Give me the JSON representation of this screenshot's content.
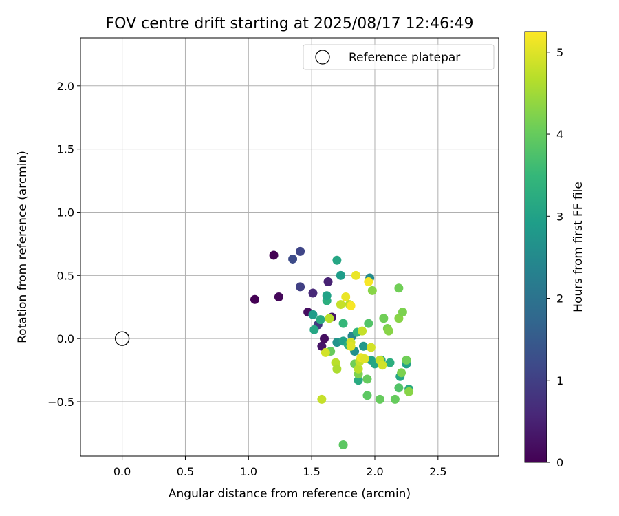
{
  "chart_data": {
    "type": "scatter",
    "title": "FOV centre drift starting at 2025/08/17 12:46:49",
    "xlabel": "Angular distance from reference (arcmin)",
    "ylabel": "Rotation from reference (arcmin)",
    "xlim": [
      -0.33,
      2.98
    ],
    "ylim": [
      -0.93,
      2.38
    ],
    "x_ticks": [
      0.0,
      0.5,
      1.0,
      1.5,
      2.0,
      2.5
    ],
    "y_ticks": [
      -0.5,
      0.0,
      0.5,
      1.0,
      1.5,
      2.0
    ],
    "x_tick_labels": [
      "0.0",
      "0.5",
      "1.0",
      "1.5",
      "2.0",
      "2.5"
    ],
    "y_tick_labels": [
      "−0.5",
      "0.0",
      "0.5",
      "1.0",
      "1.5",
      "2.0"
    ],
    "grid": true,
    "legend": {
      "placement": "top-right",
      "entries": [
        {
          "label": "Reference platepar",
          "marker": "open-circle"
        }
      ]
    },
    "reference_point": {
      "x": 0.0,
      "y": 0.0,
      "marker": "open-circle"
    },
    "colorbar": {
      "label": "Hours from first FF file",
      "range": [
        0,
        5.25
      ],
      "ticks": [
        0,
        1,
        2,
        3,
        4,
        5
      ],
      "colormap": "viridis",
      "colors": [
        "#440154",
        "#482878",
        "#3e4989",
        "#31688e",
        "#26828e",
        "#1f9e89",
        "#35b779",
        "#6ece58",
        "#b5de2b",
        "#fde725"
      ]
    },
    "series": [
      {
        "c_label": "Hours from first FF file",
        "points": [
          {
            "x": 1.05,
            "y": 0.31,
            "c": 0.0
          },
          {
            "x": 1.2,
            "y": 0.66,
            "c": 0.0
          },
          {
            "x": 1.24,
            "y": 0.33,
            "c": 0.1
          },
          {
            "x": 1.35,
            "y": 0.63,
            "c": 1.2
          },
          {
            "x": 1.41,
            "y": 0.69,
            "c": 1.1
          },
          {
            "x": 1.41,
            "y": 0.41,
            "c": 1.0
          },
          {
            "x": 1.47,
            "y": 0.21,
            "c": 0.2
          },
          {
            "x": 1.51,
            "y": 0.36,
            "c": 0.6
          },
          {
            "x": 1.55,
            "y": 0.11,
            "c": 0.9
          },
          {
            "x": 1.58,
            "y": -0.06,
            "c": 0.3
          },
          {
            "x": 1.6,
            "y": 0.0,
            "c": 0.2
          },
          {
            "x": 1.63,
            "y": 0.45,
            "c": 0.5
          },
          {
            "x": 1.66,
            "y": 0.17,
            "c": 0.3
          },
          {
            "x": 1.51,
            "y": 0.19,
            "c": 2.9
          },
          {
            "x": 1.52,
            "y": 0.07,
            "c": 3.1
          },
          {
            "x": 1.57,
            "y": 0.15,
            "c": 3.2
          },
          {
            "x": 1.62,
            "y": 0.3,
            "c": 3.3
          },
          {
            "x": 1.62,
            "y": 0.34,
            "c": 3.0
          },
          {
            "x": 1.7,
            "y": 0.62,
            "c": 3.1
          },
          {
            "x": 1.73,
            "y": 0.5,
            "c": 2.9
          },
          {
            "x": 1.96,
            "y": 0.48,
            "c": 2.5
          },
          {
            "x": 1.7,
            "y": -0.03,
            "c": 2.7
          },
          {
            "x": 1.75,
            "y": 0.12,
            "c": 3.5
          },
          {
            "x": 1.75,
            "y": -0.02,
            "c": 3.0
          },
          {
            "x": 1.79,
            "y": -0.05,
            "c": 3.3
          },
          {
            "x": 1.82,
            "y": 0.02,
            "c": 2.4
          },
          {
            "x": 1.84,
            "y": -0.1,
            "c": 2.6
          },
          {
            "x": 1.86,
            "y": 0.05,
            "c": 3.4
          },
          {
            "x": 1.87,
            "y": -0.33,
            "c": 3.2
          },
          {
            "x": 1.91,
            "y": -0.06,
            "c": 2.8
          },
          {
            "x": 1.97,
            "y": -0.17,
            "c": 3.0
          },
          {
            "x": 2.0,
            "y": -0.2,
            "c": 3.1
          },
          {
            "x": 2.05,
            "y": -0.17,
            "c": 3.2
          },
          {
            "x": 2.12,
            "y": -0.19,
            "c": 3.3
          },
          {
            "x": 2.2,
            "y": -0.3,
            "c": 3.1
          },
          {
            "x": 2.25,
            "y": -0.2,
            "c": 3.0
          },
          {
            "x": 2.27,
            "y": -0.4,
            "c": 3.2
          },
          {
            "x": 1.75,
            "y": -0.84,
            "c": 3.9
          },
          {
            "x": 1.65,
            "y": -0.1,
            "c": 4.0
          },
          {
            "x": 1.84,
            "y": -0.2,
            "c": 4.1
          },
          {
            "x": 1.87,
            "y": -0.28,
            "c": 4.2
          },
          {
            "x": 1.94,
            "y": -0.32,
            "c": 4.0
          },
          {
            "x": 1.94,
            "y": -0.45,
            "c": 3.9
          },
          {
            "x": 1.95,
            "y": 0.12,
            "c": 3.8
          },
          {
            "x": 1.98,
            "y": 0.38,
            "c": 4.3
          },
          {
            "x": 2.04,
            "y": -0.48,
            "c": 4.0
          },
          {
            "x": 2.07,
            "y": 0.16,
            "c": 4.1
          },
          {
            "x": 2.1,
            "y": 0.08,
            "c": 4.2
          },
          {
            "x": 2.11,
            "y": 0.06,
            "c": 4.3
          },
          {
            "x": 2.16,
            "y": -0.48,
            "c": 4.0
          },
          {
            "x": 2.19,
            "y": -0.39,
            "c": 3.8
          },
          {
            "x": 2.19,
            "y": 0.4,
            "c": 4.1
          },
          {
            "x": 2.19,
            "y": 0.16,
            "c": 4.3
          },
          {
            "x": 2.21,
            "y": -0.27,
            "c": 4.2
          },
          {
            "x": 2.22,
            "y": 0.21,
            "c": 4.2
          },
          {
            "x": 2.25,
            "y": -0.17,
            "c": 4.1
          },
          {
            "x": 2.27,
            "y": -0.42,
            "c": 4.3
          },
          {
            "x": 1.58,
            "y": -0.48,
            "c": 4.8
          },
          {
            "x": 1.61,
            "y": -0.11,
            "c": 4.9
          },
          {
            "x": 1.64,
            "y": 0.16,
            "c": 4.7
          },
          {
            "x": 1.69,
            "y": -0.19,
            "c": 4.7
          },
          {
            "x": 1.7,
            "y": -0.24,
            "c": 4.6
          },
          {
            "x": 1.73,
            "y": 0.27,
            "c": 4.8
          },
          {
            "x": 1.77,
            "y": 0.33,
            "c": 5.1
          },
          {
            "x": 1.8,
            "y": 0.27,
            "c": 4.7
          },
          {
            "x": 1.81,
            "y": 0.26,
            "c": 5.2
          },
          {
            "x": 1.81,
            "y": -0.03,
            "c": 4.9
          },
          {
            "x": 1.81,
            "y": -0.06,
            "c": 5.0
          },
          {
            "x": 1.85,
            "y": 0.5,
            "c": 5.1
          },
          {
            "x": 1.87,
            "y": -0.24,
            "c": 4.7
          },
          {
            "x": 1.88,
            "y": -0.18,
            "c": 4.8
          },
          {
            "x": 1.89,
            "y": -0.15,
            "c": 5.1
          },
          {
            "x": 1.9,
            "y": 0.06,
            "c": 4.8
          },
          {
            "x": 1.92,
            "y": -0.16,
            "c": 5.0
          },
          {
            "x": 1.95,
            "y": 0.45,
            "c": 5.2
          },
          {
            "x": 1.97,
            "y": -0.07,
            "c": 4.9
          },
          {
            "x": 2.04,
            "y": -0.17,
            "c": 4.8
          },
          {
            "x": 2.06,
            "y": -0.21,
            "c": 4.9
          }
        ]
      }
    ]
  }
}
